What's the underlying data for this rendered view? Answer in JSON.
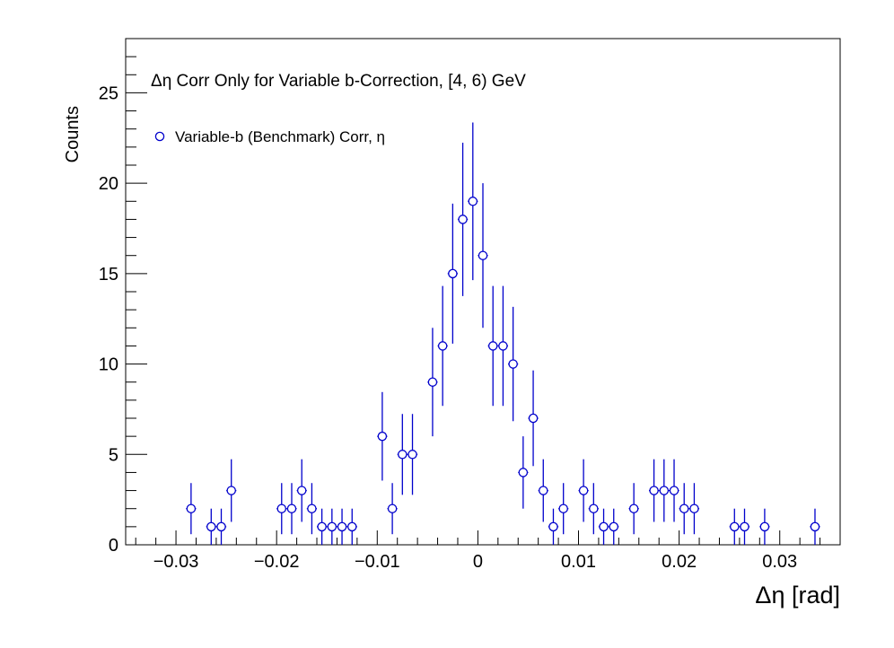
{
  "chart_data": {
    "type": "scatter",
    "title": "Δη Corr Only for Variable b-Correction, [4, 6) GeV",
    "xlabel": "Δη  [rad]",
    "ylabel": "Counts",
    "xlim": [
      -0.035,
      0.036
    ],
    "ylim": [
      0,
      28
    ],
    "x_ticks": [
      {
        "value": -0.03,
        "label": "−0.03"
      },
      {
        "value": -0.02,
        "label": "−0.02"
      },
      {
        "value": -0.01,
        "label": "−0.01"
      },
      {
        "value": 0,
        "label": "0"
      },
      {
        "value": 0.01,
        "label": "0.01"
      },
      {
        "value": 0.02,
        "label": "0.02"
      },
      {
        "value": 0.03,
        "label": "0.03"
      }
    ],
    "y_ticks": [
      {
        "value": 0,
        "label": "0"
      },
      {
        "value": 5,
        "label": "5"
      },
      {
        "value": 10,
        "label": "10"
      },
      {
        "value": 15,
        "label": "15"
      },
      {
        "value": 20,
        "label": "20"
      },
      {
        "value": 25,
        "label": "25"
      }
    ],
    "grid": false,
    "legend_position": "top-left",
    "bin_width": 0.001,
    "series": [
      {
        "name": "Variable-b (Benchmark) Corr, η",
        "color": "#0000cc",
        "marker": "open-circle",
        "x": [
          -0.0285,
          -0.0265,
          -0.0255,
          -0.0245,
          -0.0195,
          -0.0185,
          -0.0175,
          -0.0165,
          -0.0155,
          -0.0145,
          -0.0135,
          -0.0125,
          -0.0095,
          -0.0085,
          -0.0075,
          -0.0065,
          -0.0045,
          -0.0035,
          -0.0025,
          -0.0015,
          -0.0005,
          0.0005,
          0.0015,
          0.0025,
          0.0035,
          0.0045,
          0.0055,
          0.0065,
          0.0075,
          0.0085,
          0.0105,
          0.0115,
          0.0125,
          0.0135,
          0.0155,
          0.0175,
          0.0185,
          0.0195,
          0.0205,
          0.0215,
          0.0255,
          0.0265,
          0.0285,
          0.0335
        ],
        "y": [
          2,
          1,
          1,
          3,
          2,
          2,
          3,
          2,
          1,
          1,
          1,
          1,
          6,
          2,
          5,
          5,
          9,
          11,
          15,
          18,
          19,
          16,
          11,
          11,
          10,
          4,
          7,
          3,
          1,
          2,
          3,
          2,
          1,
          1,
          2,
          3,
          3,
          3,
          2,
          2,
          1,
          1,
          1,
          1
        ]
      }
    ]
  }
}
